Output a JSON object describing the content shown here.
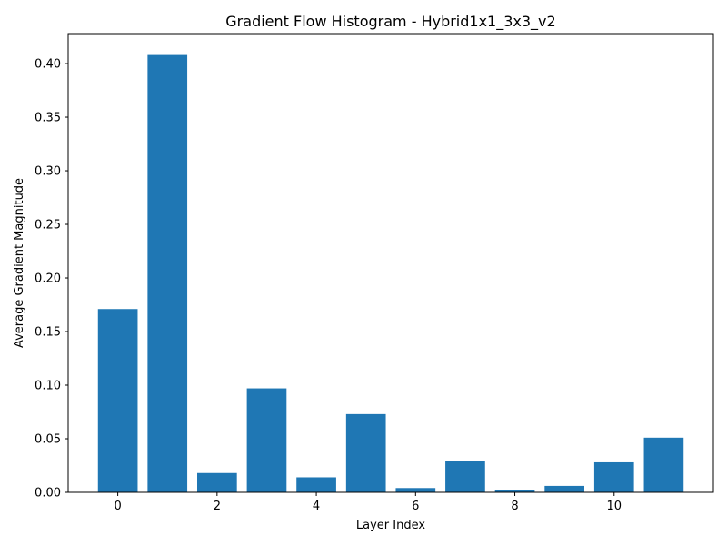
{
  "chart_data": {
    "type": "bar",
    "title": "Gradient Flow Histogram - Hybrid1x1_3x3_v2",
    "xlabel": "Layer Index",
    "ylabel": "Average Gradient Magnitude",
    "x": [
      0,
      1,
      2,
      3,
      4,
      5,
      6,
      7,
      8,
      9,
      10,
      11
    ],
    "values": [
      0.171,
      0.408,
      0.018,
      0.097,
      0.014,
      0.073,
      0.004,
      0.029,
      0.002,
      0.006,
      0.028,
      0.051
    ],
    "xlim": [
      -1.0,
      12.0
    ],
    "ylim": [
      0,
      0.428
    ],
    "xticks": [
      0,
      2,
      4,
      6,
      8,
      10
    ],
    "xtick_labels": [
      "0",
      "2",
      "4",
      "6",
      "8",
      "10"
    ],
    "yticks": [
      0,
      0.05,
      0.1,
      0.15,
      0.2,
      0.25,
      0.3,
      0.35,
      0.4
    ],
    "ytick_labels": [
      "0.00",
      "0.05",
      "0.10",
      "0.15",
      "0.20",
      "0.25",
      "0.30",
      "0.35",
      "0.40"
    ],
    "bar_color": "#1f77b4",
    "grid": false,
    "legend": "none"
  }
}
